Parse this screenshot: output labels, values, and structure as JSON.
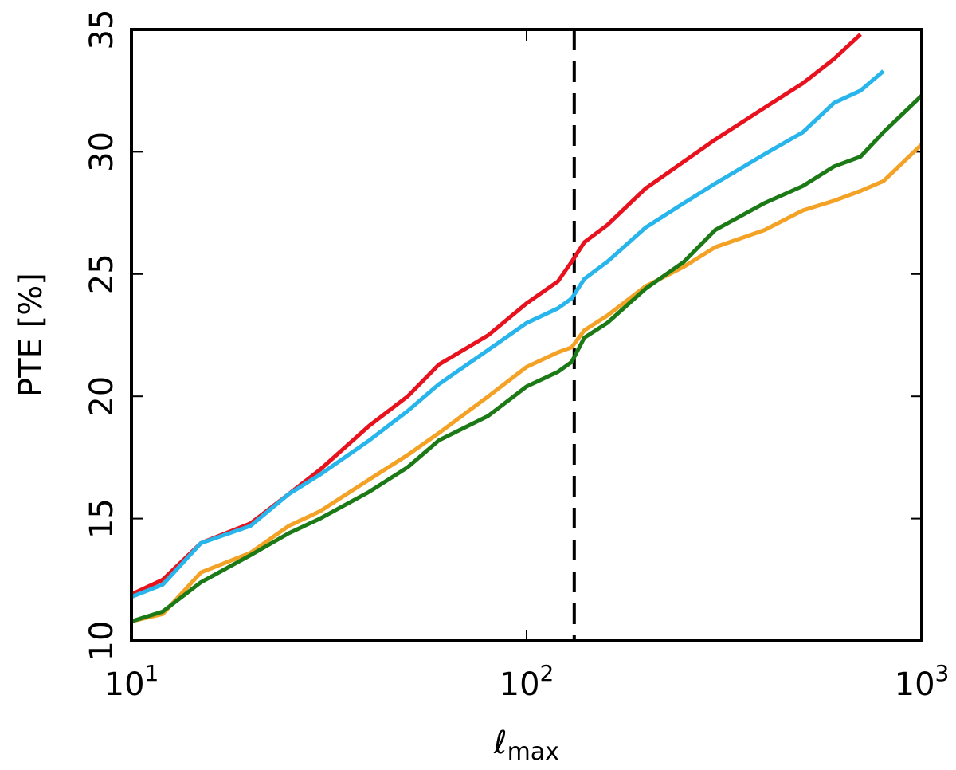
{
  "chart_data": {
    "type": "line",
    "x_label": "ℓ",
    "x_label_sub": "max",
    "y_label": "PTE [%]",
    "x": [
      10,
      12,
      15,
      20,
      25,
      30,
      40,
      50,
      60,
      80,
      100,
      120,
      130,
      140,
      160,
      200,
      250,
      300,
      400,
      500,
      600,
      700,
      800,
      1000
    ],
    "series": [
      {
        "color": "#e8121f",
        "values": [
          11.9,
          12.5,
          14.0,
          14.8,
          16.0,
          17.0,
          18.8,
          20.0,
          21.3,
          22.5,
          23.8,
          24.7,
          25.5,
          26.3,
          27.0,
          28.5,
          29.6,
          30.5,
          31.8,
          32.8,
          33.8,
          34.8,
          null,
          null
        ]
      },
      {
        "color": "#27b5ec",
        "values": [
          11.8,
          12.3,
          14.0,
          14.7,
          16.0,
          16.8,
          18.2,
          19.4,
          20.5,
          21.9,
          23.0,
          23.6,
          24.0,
          24.8,
          25.5,
          26.9,
          27.9,
          28.7,
          29.9,
          30.8,
          32.0,
          32.5,
          33.3,
          null
        ]
      },
      {
        "color": "#f4a226",
        "values": [
          10.8,
          11.1,
          12.8,
          13.6,
          14.7,
          15.3,
          16.6,
          17.6,
          18.5,
          20.0,
          21.2,
          21.8,
          22.0,
          22.7,
          23.3,
          24.5,
          25.3,
          26.1,
          26.8,
          27.6,
          28.0,
          28.4,
          28.8,
          30.3
        ]
      },
      {
        "color": "#1c7a16",
        "values": [
          10.8,
          11.2,
          12.4,
          13.5,
          14.4,
          15.0,
          16.1,
          17.1,
          18.2,
          19.2,
          20.4,
          21.0,
          21.4,
          22.4,
          23.0,
          24.4,
          25.5,
          26.8,
          27.9,
          28.6,
          29.4,
          29.8,
          30.8,
          32.3
        ]
      }
    ],
    "x_log": true,
    "xlim": [
      10,
      1000
    ],
    "xticks": [
      {
        "value": 10,
        "label": "10",
        "exponent": "1"
      },
      {
        "value": 100,
        "label": "10",
        "exponent": "2"
      },
      {
        "value": 1000,
        "label": "10",
        "exponent": "3"
      }
    ],
    "ylim": [
      10,
      35
    ],
    "yticks": [
      10,
      15,
      20,
      25,
      30,
      35
    ],
    "vline_x": 132,
    "vline_color": "#000000"
  }
}
